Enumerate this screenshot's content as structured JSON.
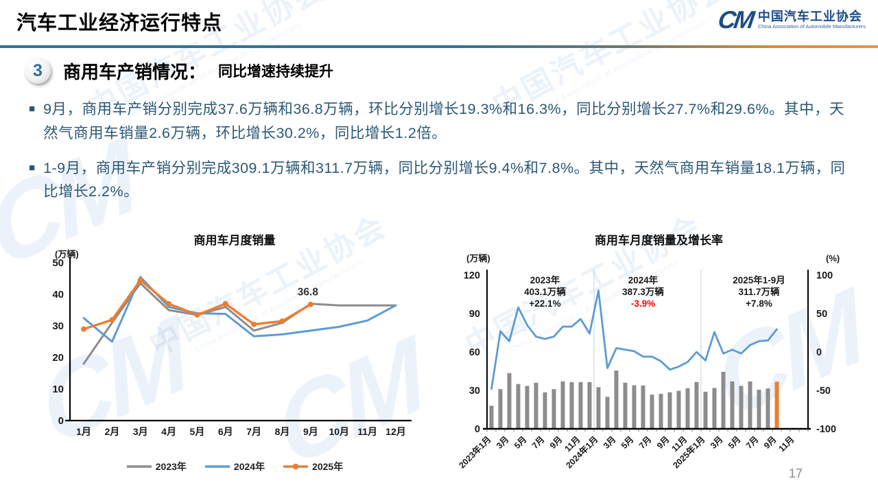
{
  "header": {
    "title": "汽车工业经济运行特点",
    "logo": {
      "mark": "CM",
      "name_cn": "中国汽车工业协会",
      "name_en": "China Association of Automobile Manufacturers"
    }
  },
  "section": {
    "number": "3",
    "title": "商用车产销情况：",
    "subtitle": "同比增速持续提升"
  },
  "bullets": [
    {
      "text": "9月，商用车产销分别完成37.6万辆和36.8万辆，环比分别增长19.3%和16.3%，同比分别增长27.7%和29.6%。其中，天然气商用车销量2.6万辆，环比增长30.2%，同比增长1.2倍。"
    },
    {
      "text": "1-9月，商用车产销分别完成309.1万辆和311.7万辆，同比分别增长9.4%和7.8%。其中，天然气商用车销量18.1万辆，同比增长2.2%。"
    }
  ],
  "watermark": {
    "text_cn": "中国汽车工业协会",
    "text_en": "China Association of Automobile Manufacturers",
    "mark": "CM"
  },
  "page_number": "17",
  "chart_data": [
    {
      "type": "line",
      "title": "商用车月度销量",
      "unit_label": "(万辆)",
      "categories": [
        "1月",
        "2月",
        "3月",
        "4月",
        "5月",
        "6月",
        "7月",
        "8月",
        "9月",
        "10月",
        "11月",
        "12月"
      ],
      "ylim": [
        0,
        50
      ],
      "yticks": [
        0,
        10,
        20,
        30,
        40,
        50
      ],
      "grid": false,
      "legend_position": "bottom",
      "series": [
        {
          "name": "2023年",
          "color": "#8C8C8C",
          "marker": false,
          "values": [
            18,
            31,
            43.5,
            35,
            33.5,
            36,
            28.5,
            31,
            37,
            36.5,
            36.5,
            36.5
          ]
        },
        {
          "name": "2024年",
          "color": "#5B9BD5",
          "marker": false,
          "values": [
            32.5,
            25,
            45.5,
            36,
            34,
            33.8,
            26.7,
            27.3,
            28.5,
            29.7,
            31.7,
            36.5
          ]
        },
        {
          "name": "2025年",
          "color": "#ED7D31",
          "marker": true,
          "values": [
            29,
            31.9,
            44.5,
            37,
            33.5,
            37,
            30.5,
            31.5,
            36.8
          ]
        }
      ],
      "annotation": {
        "text": "36.8",
        "series_index": 2,
        "point_index": 8
      }
    },
    {
      "type": "bar+line",
      "title": "商用车月度销量及增长率",
      "unit_left": "(万辆)",
      "unit_right": "(%)",
      "n_slots": 36,
      "x_labels": [
        "2023年1月",
        "3月",
        "5月",
        "7月",
        "9月",
        "11月",
        "2024年1月",
        "3月",
        "5月",
        "7月",
        "9月",
        "11月",
        "2025年1月",
        "3月",
        "5月",
        "7月",
        "9月",
        "11月"
      ],
      "x_label_slot_step": 2,
      "ylim_left": [
        0,
        120
      ],
      "yticks_left": [
        0,
        30,
        60,
        90,
        120
      ],
      "ylim_right": [
        -100,
        100
      ],
      "yticks_right": [
        -100,
        -50,
        0,
        50,
        100
      ],
      "bars": {
        "name": "月度销量(万辆)",
        "color": "#8C8C8C",
        "highlight_color": "#ED7D31",
        "highlight_index": 32,
        "values": [
          18,
          31,
          43.5,
          35,
          33.5,
          36,
          28.5,
          31,
          37,
          36.5,
          36.5,
          36.5,
          32.5,
          25,
          45.5,
          36,
          34,
          33.8,
          26.7,
          27.3,
          28.5,
          29.7,
          31.7,
          36.5,
          29,
          31.9,
          44.5,
          37,
          33.5,
          37,
          30.5,
          31.5,
          36.8
        ]
      },
      "line": {
        "name": "同比增长率(%)",
        "color": "#5B9BD5",
        "values": [
          -48,
          27,
          14,
          58,
          35,
          20,
          17,
          20,
          33,
          33,
          43,
          24,
          80,
          -21,
          5,
          3,
          1,
          -6,
          -6,
          -12,
          -23,
          -19,
          -13,
          0,
          -11,
          26,
          -2,
          3,
          -2,
          9,
          14,
          15,
          29.6
        ]
      },
      "separator_slots": [
        12,
        24
      ],
      "annotations": [
        {
          "x_slot": 6,
          "lines": [
            {
              "text": "2023年"
            },
            {
              "text": "403.1万辆"
            },
            {
              "text": "+22.1%"
            }
          ]
        },
        {
          "x_slot": 17,
          "lines": [
            {
              "text": "2024年"
            },
            {
              "text": "387.3万辆"
            },
            {
              "text": "-3.9%",
              "color": "#FF0000"
            }
          ]
        },
        {
          "x_slot": 30,
          "lines": [
            {
              "text": "2025年1-9月"
            },
            {
              "text": "311.7万辆"
            },
            {
              "text": "+7.8%"
            }
          ]
        }
      ]
    }
  ]
}
